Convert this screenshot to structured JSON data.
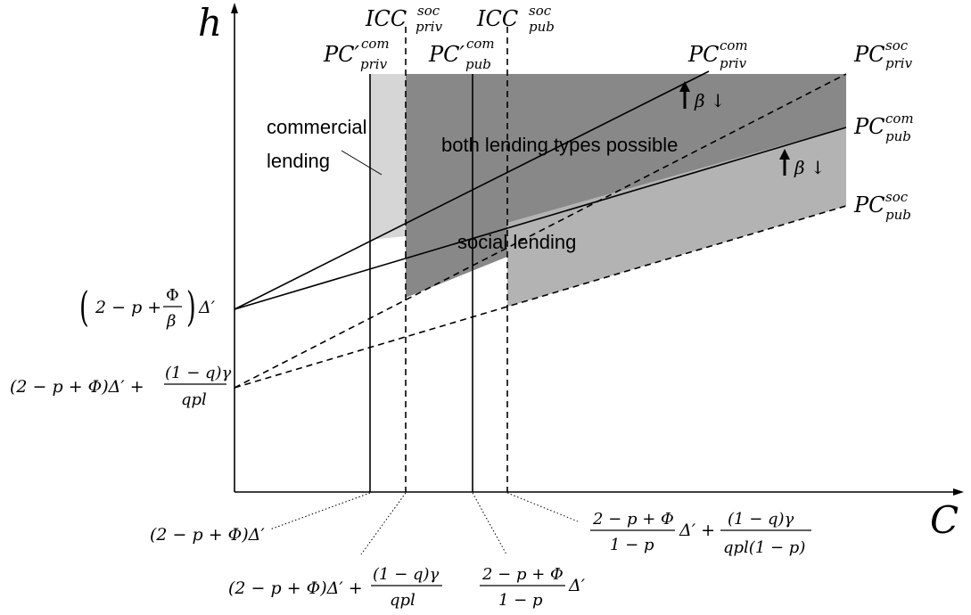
{
  "axes": {
    "y_label": "h",
    "x_label": "C"
  },
  "curves": {
    "icc_priv": {
      "base": "ICC",
      "sup": "soc",
      "sub": "priv"
    },
    "icc_pub": {
      "base": "ICC",
      "sup": "soc",
      "sub": "pub"
    },
    "pcp_priv": {
      "base": "PC′",
      "sup": "com",
      "sub": "priv"
    },
    "pcp_pub": {
      "base": "PC′",
      "sup": "com",
      "sub": "pub"
    },
    "pc_com_priv": {
      "base": "PC",
      "sup": "com",
      "sub": "priv"
    },
    "pc_soc_priv": {
      "base": "PC",
      "sup": "soc",
      "sub": "priv"
    },
    "pc_com_pub": {
      "base": "PC",
      "sup": "com",
      "sub": "pub"
    },
    "pc_soc_pub": {
      "base": "PC",
      "sup": "soc",
      "sub": "pub"
    }
  },
  "regions": {
    "commercial_line1": "commercial",
    "commercial_line2": "lending",
    "both": "both lending types possible",
    "social": "social lending"
  },
  "beta_annotation": "β ↓",
  "colors": {
    "commercial": "#d6d6d6",
    "both": "#888888",
    "social": "#b3b3b3"
  },
  "y_labels": {
    "upper": {
      "pre": "2 − p +",
      "num": "Φ",
      "den": "β",
      "post": "Δ′"
    },
    "lower": {
      "pre": "(2 − p + Φ)Δ′ +",
      "num": "(1 − q)γ",
      "den": "qpl"
    }
  },
  "x_labels": {
    "a": "(2 − p + Φ)Δ′",
    "b": {
      "pre": "(2 − p + Φ)Δ′ +",
      "num": "(1 − q)γ",
      "den": "qpl"
    },
    "c": {
      "num": "2 − p + Φ",
      "den": "1 − p",
      "post": "Δ′"
    },
    "d": {
      "num": "2 − p + Φ",
      "den": "1 − p",
      "mid": "Δ′ +",
      "num2": "(1 − q)γ",
      "den2": "qpl(1 − p)"
    }
  }
}
